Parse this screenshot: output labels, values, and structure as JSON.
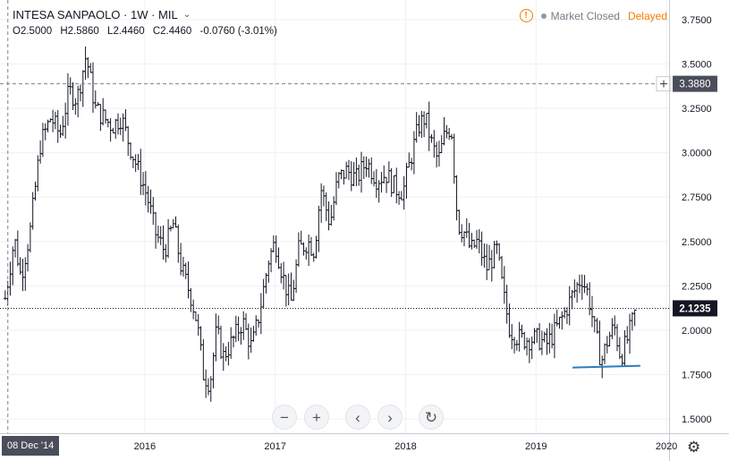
{
  "header": {
    "title": "INTESA SANPAOLO · 1W · MIL",
    "chevron": "⌄",
    "ohlc": {
      "o_label": "O",
      "o": "2.5000",
      "h_label": "H",
      "h": "2.5860",
      "l_label": "L",
      "l": "2.4460",
      "c_label": "C",
      "c": "2.4460",
      "change": "-0.0760 (-3.01%)"
    },
    "market_status": "Market Closed",
    "delayed": "Delayed",
    "warn_icon": "!"
  },
  "toolbar": {
    "zoom_out": "−",
    "zoom_in": "+",
    "scroll_left": "‹",
    "scroll_right": "›",
    "reset": "↻"
  },
  "crosshair_date": "08 Dec '14",
  "colors": {
    "bars": "#131722",
    "support_line": "#2d7dbf",
    "price_tag": "#131722",
    "grid": "#eef0f3"
  },
  "chart_data": {
    "type": "ohlc",
    "timeframe": "1W",
    "y_ticks": [
      "3.7500",
      "3.5000",
      "3.2500",
      "3.0000",
      "2.7500",
      "2.5000",
      "2.2500",
      "2.0000",
      "1.7500",
      "1.5000"
    ],
    "x_ticks": [
      "2016",
      "2017",
      "2018",
      "2019",
      "2020"
    ],
    "ylim": [
      1.42,
      3.86
    ],
    "xlim": [
      2014.89,
      2020.02
    ],
    "crosshair_price": "3.3880",
    "crosshair_value": 3.388,
    "last_price": "2.1235",
    "last_value": 2.1235,
    "support_line": [
      [
        2019.28,
        1.79
      ],
      [
        2019.8,
        1.8
      ]
    ],
    "price_path": [
      [
        2014.93,
        2.18
      ],
      [
        2015.0,
        2.52
      ],
      [
        2015.05,
        2.3
      ],
      [
        2015.12,
        2.55
      ],
      [
        2015.2,
        3.05
      ],
      [
        2015.28,
        3.2
      ],
      [
        2015.35,
        3.1
      ],
      [
        2015.42,
        3.35
      ],
      [
        2015.48,
        3.3
      ],
      [
        2015.55,
        3.55
      ],
      [
        2015.62,
        3.25
      ],
      [
        2015.68,
        3.2
      ],
      [
        2015.75,
        3.15
      ],
      [
        2015.82,
        3.2
      ],
      [
        2015.88,
        3.05
      ],
      [
        2015.95,
        2.9
      ],
      [
        2016.02,
        2.75
      ],
      [
        2016.08,
        2.55
      ],
      [
        2016.15,
        2.45
      ],
      [
        2016.22,
        2.6
      ],
      [
        2016.28,
        2.35
      ],
      [
        2016.35,
        2.2
      ],
      [
        2016.4,
        2.05
      ],
      [
        2016.45,
        1.75
      ],
      [
        2016.5,
        1.7
      ],
      [
        2016.55,
        2.0
      ],
      [
        2016.6,
        1.85
      ],
      [
        2016.68,
        1.95
      ],
      [
        2016.75,
        2.05
      ],
      [
        2016.82,
        1.9
      ],
      [
        2016.88,
        2.1
      ],
      [
        2016.95,
        2.4
      ],
      [
        2017.0,
        2.5
      ],
      [
        2017.06,
        2.3
      ],
      [
        2017.12,
        2.15
      ],
      [
        2017.18,
        2.45
      ],
      [
        2017.25,
        2.5
      ],
      [
        2017.3,
        2.45
      ],
      [
        2017.35,
        2.8
      ],
      [
        2017.42,
        2.6
      ],
      [
        2017.48,
        2.85
      ],
      [
        2017.55,
        2.9
      ],
      [
        2017.62,
        2.85
      ],
      [
        2017.7,
        2.95
      ],
      [
        2017.78,
        2.85
      ],
      [
        2017.85,
        2.88
      ],
      [
        2017.92,
        2.8
      ],
      [
        2017.98,
        2.78
      ],
      [
        2018.05,
        3.0
      ],
      [
        2018.1,
        3.15
      ],
      [
        2018.15,
        3.2
      ],
      [
        2018.2,
        3.05
      ],
      [
        2018.25,
        2.95
      ],
      [
        2018.3,
        3.1
      ],
      [
        2018.35,
        3.15
      ],
      [
        2018.4,
        2.6
      ],
      [
        2018.45,
        2.55
      ],
      [
        2018.5,
        2.45
      ],
      [
        2018.55,
        2.5
      ],
      [
        2018.62,
        2.35
      ],
      [
        2018.7,
        2.45
      ],
      [
        2018.75,
        2.2
      ],
      [
        2018.8,
        2.0
      ],
      [
        2018.88,
        1.95
      ],
      [
        2018.95,
        1.95
      ],
      [
        2019.02,
        1.95
      ],
      [
        2019.08,
        1.92
      ],
      [
        2019.15,
        2.0
      ],
      [
        2019.22,
        2.1
      ],
      [
        2019.28,
        2.2
      ],
      [
        2019.35,
        2.3
      ],
      [
        2019.4,
        2.2
      ],
      [
        2019.45,
        2.0
      ],
      [
        2019.5,
        1.82
      ],
      [
        2019.55,
        1.95
      ],
      [
        2019.6,
        2.02
      ],
      [
        2019.65,
        1.85
      ],
      [
        2019.7,
        1.95
      ],
      [
        2019.76,
        2.1
      ]
    ]
  }
}
